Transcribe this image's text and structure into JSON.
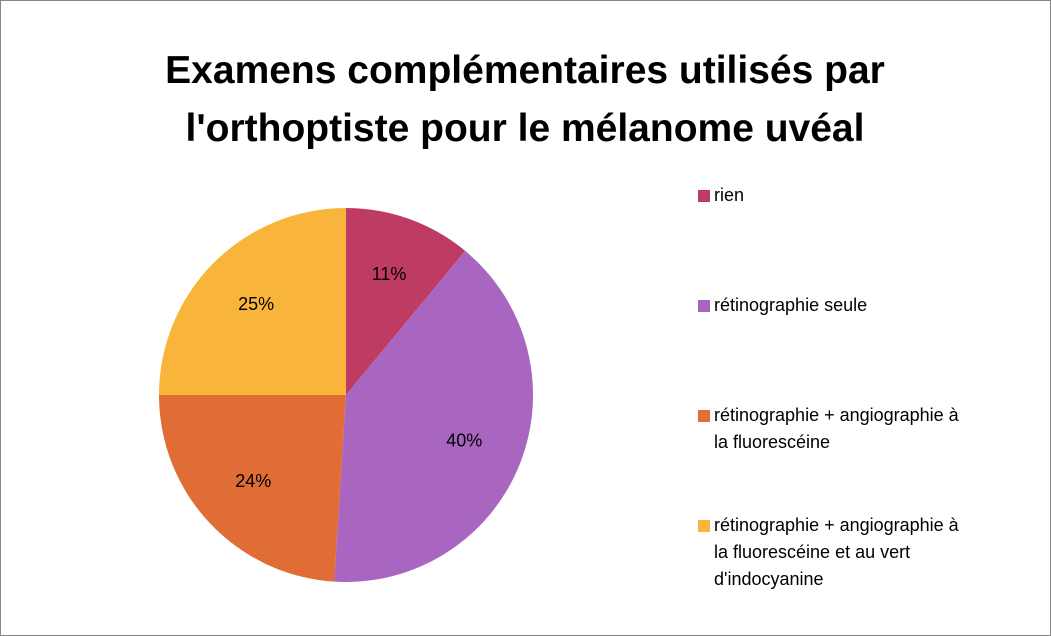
{
  "chart_data": {
    "type": "pie",
    "title": "Examens complémentaires utilisés par l'orthoptiste pour le mélanome uvéal",
    "categories": [
      "rien",
      "rétinographie seule",
      "rétinographie + angiographie à la fluorescéine",
      "rétinographie + angiographie à la fluorescéine et au vert d'indocyanine"
    ],
    "values": [
      11,
      40,
      24,
      25
    ],
    "value_labels": [
      "11%",
      "40%",
      "24%",
      "25%"
    ],
    "colors": [
      "#be3b64",
      "#a966c1",
      "#e06d36",
      "#f9b43b"
    ],
    "legend": "right"
  }
}
